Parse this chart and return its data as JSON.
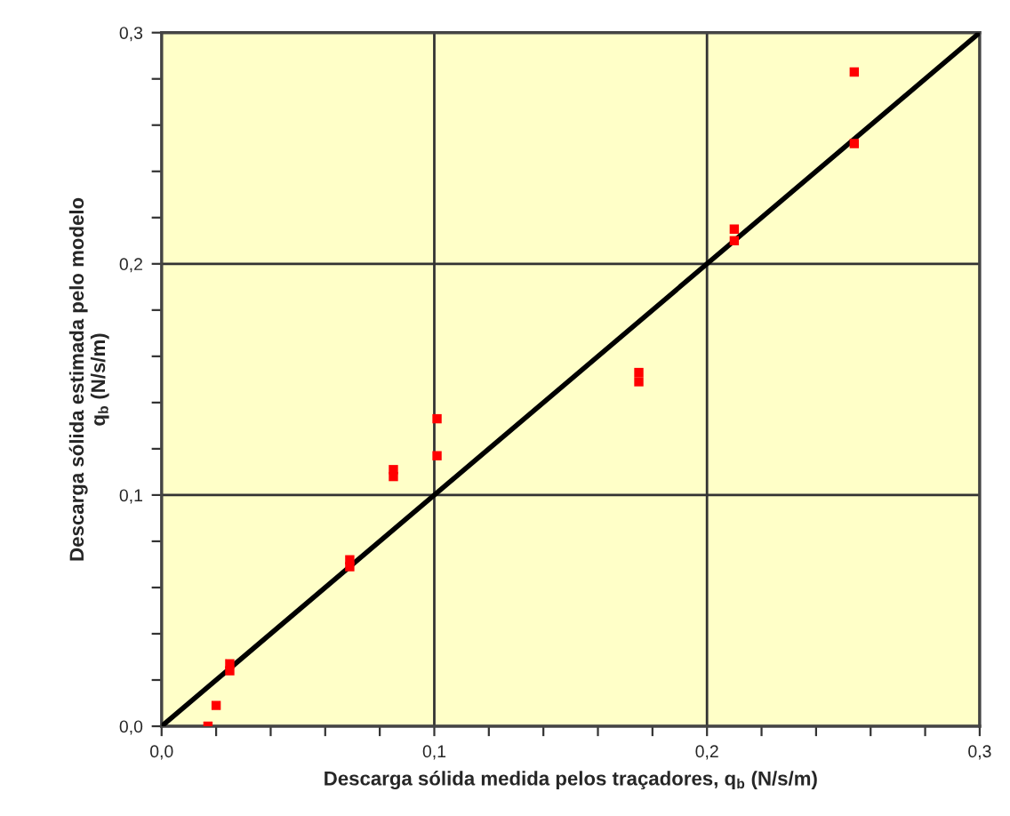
{
  "chart_data": {
    "type": "scatter",
    "xlabel": "Descarga sólida medida pelos traçadores, q$_{b}$ (N/s/m)",
    "ylabel": "Descarga sólida estimada pelo modelo\nq$_{b}$ (N/s/m)",
    "xlim": [
      0,
      0.3
    ],
    "ylim": [
      0,
      0.3
    ],
    "xticks": [
      {
        "value": 0,
        "label": "0,0"
      },
      {
        "value": 0.02,
        "label": null
      },
      {
        "value": 0.04,
        "label": null
      },
      {
        "value": 0.06,
        "label": null
      },
      {
        "value": 0.08,
        "label": null
      },
      {
        "value": 0.1,
        "label": "0,1"
      },
      {
        "value": 0.12,
        "label": null
      },
      {
        "value": 0.14,
        "label": null
      },
      {
        "value": 0.16,
        "label": null
      },
      {
        "value": 0.18,
        "label": null
      },
      {
        "value": 0.2,
        "label": "0,2"
      },
      {
        "value": 0.22,
        "label": null
      },
      {
        "value": 0.24,
        "label": null
      },
      {
        "value": 0.26,
        "label": null
      },
      {
        "value": 0.28,
        "label": null
      },
      {
        "value": 0.3,
        "label": "0,3"
      }
    ],
    "yticks": [
      {
        "value": 0,
        "label": "0,0"
      },
      {
        "value": 0.02,
        "label": null
      },
      {
        "value": 0.04,
        "label": null
      },
      {
        "value": 0.06,
        "label": null
      },
      {
        "value": 0.08,
        "label": null
      },
      {
        "value": 0.1,
        "label": "0,1"
      },
      {
        "value": 0.12,
        "label": null
      },
      {
        "value": 0.14,
        "label": null
      },
      {
        "value": 0.16,
        "label": null
      },
      {
        "value": 0.18,
        "label": null
      },
      {
        "value": 0.2,
        "label": "0,2"
      },
      {
        "value": 0.22,
        "label": null
      },
      {
        "value": 0.24,
        "label": null
      },
      {
        "value": 0.26,
        "label": null
      },
      {
        "value": 0.28,
        "label": null
      },
      {
        "value": 0.3,
        "label": "0,3"
      }
    ],
    "grid": true,
    "series": [
      {
        "marker": "square",
        "color": "#ff0000",
        "x": [
          0.017,
          0.02,
          0.025,
          0.025,
          0.069,
          0.069,
          0.085,
          0.085,
          0.101,
          0.101,
          0.175,
          0.175,
          0.21,
          0.21,
          0.254,
          0.254
        ],
        "values": [
          0.0,
          0.009,
          0.027,
          0.024,
          0.072,
          0.069,
          0.111,
          0.108,
          0.133,
          0.117,
          0.153,
          0.149,
          0.215,
          0.21,
          0.283,
          0.252
        ]
      },
      {
        "type": "line",
        "marker": "none",
        "color": "#000000",
        "x": [
          0,
          0.3
        ],
        "values": [
          0,
          0.3
        ]
      }
    ]
  }
}
